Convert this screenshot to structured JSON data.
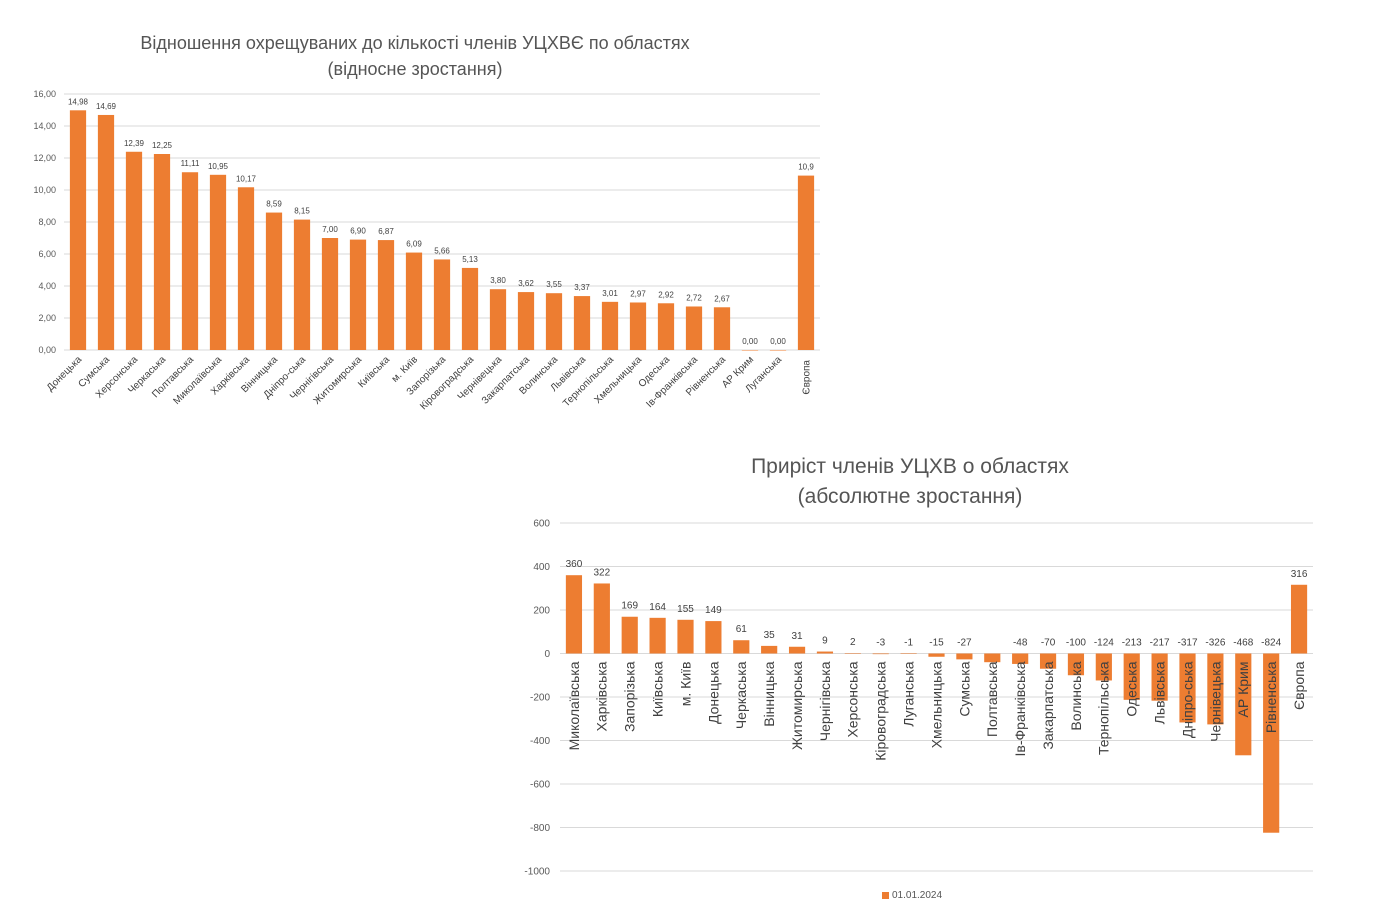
{
  "chart_data": [
    {
      "type": "bar",
      "title": "Відношення охрещуваних до кількості членів УЦХВЄ по областях",
      "subtitle": "(відносне зростання)",
      "xlabel": "",
      "ylabel": "",
      "ylim": [
        0,
        16
      ],
      "yticks": [
        "0,00",
        "2,00",
        "4,00",
        "6,00",
        "8,00",
        "10,00",
        "12,00",
        "14,00",
        "16,00"
      ],
      "grid": true,
      "color": "#ed7d31",
      "categories": [
        "Донецька",
        "Сумська",
        "Херсонська",
        "Черкаська",
        "Полтавська",
        "Миколаївська",
        "Харківська",
        "Вінницька",
        "Дніпро-ська",
        "Чернігівська",
        "Житомирська",
        "Київська",
        "м. Київ",
        "Запорізька",
        "Кіровоградська",
        "Чернівецька",
        "Закарпатська",
        "Волинська",
        "Львівська",
        "Тернопільська",
        "Хмельницька",
        "Одеська",
        "Ів-Франківська",
        "Рівненська",
        "АР Крим",
        "Луганська",
        "Європа"
      ],
      "values": [
        14.98,
        14.69,
        12.39,
        12.25,
        11.11,
        10.95,
        10.17,
        8.59,
        8.15,
        7.0,
        6.9,
        6.87,
        6.09,
        5.66,
        5.13,
        3.8,
        3.62,
        3.55,
        3.37,
        3.01,
        2.97,
        2.92,
        2.72,
        2.67,
        0.0,
        0.0,
        10.9
      ],
      "data_labels": [
        "14,98",
        "14,69",
        "12,39",
        "12,25",
        "11,11",
        "10,95",
        "10,17",
        "8,59",
        "8,15",
        "7,00",
        "6,90",
        "6,87",
        "6,09",
        "5,66",
        "5,13",
        "3,80",
        "3,62",
        "3,55",
        "3,37",
        "3,01",
        "2,97",
        "2,92",
        "2,72",
        "2,67",
        "0,00",
        "0,00",
        "10,9"
      ]
    },
    {
      "type": "bar",
      "title": "Приріст членів УЦХВ  о областях",
      "subtitle": "(абсолютне зростання)",
      "xlabel": "",
      "ylabel": "",
      "ylim": [
        -1000,
        600
      ],
      "yticks": [
        "-1000",
        "-800",
        "-600",
        "-400",
        "-200",
        "0",
        "200",
        "400",
        "600"
      ],
      "grid": true,
      "color": "#ed7d31",
      "legend": {
        "position": "bottom",
        "entries": [
          "01.01.2024"
        ]
      },
      "categories": [
        "Миколаївська",
        "Харківська",
        "Запорізька",
        "Київська",
        "м. Київ",
        "Донецька",
        "Черкаська",
        "Вінницька",
        "Житомирська",
        "Чернігівська",
        "Херсонська",
        "Кіровоградська",
        "Луганська",
        "Хмельницька",
        "Сумська",
        "Полтавська",
        "Ів-Франківська",
        "Закарпатська",
        "Волинська",
        "Тернопільська",
        "Одеська",
        "Львівська",
        "Дніпро-ська",
        "Чернівецька",
        "АР Крим",
        "Рівненська",
        "Європа"
      ],
      "values": [
        360,
        322,
        169,
        164,
        155,
        149,
        61,
        35,
        31,
        9,
        2,
        -3,
        -1,
        -15,
        -27,
        -40,
        -48,
        -70,
        -100,
        -124,
        -213,
        -217,
        -317,
        -326,
        -468,
        -824,
        316
      ],
      "data_labels": [
        "360",
        "322",
        "169",
        "164",
        "155",
        "149",
        "61",
        "35",
        "31",
        "9",
        "2",
        "-3",
        "-1",
        "-15",
        "-27",
        "",
        "-48",
        "-70",
        "-100",
        "-124",
        "-213",
        "-217",
        "-317",
        "-326",
        "-468",
        "-824",
        "316"
      ]
    }
  ]
}
